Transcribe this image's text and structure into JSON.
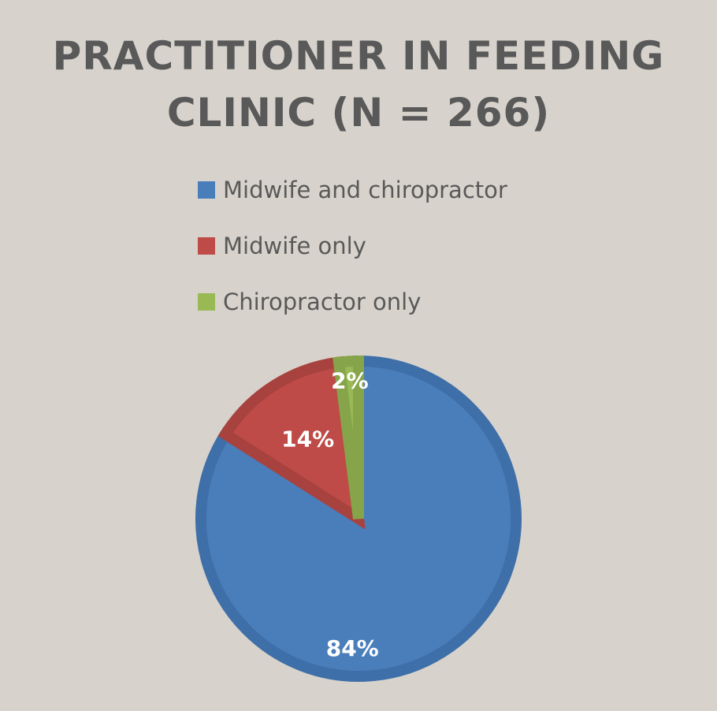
{
  "chart_data": {
    "type": "pie",
    "title": "PRACTITIONER IN FEEDING CLINIC (N = 266)",
    "title_lines": [
      "PRACTITIONER IN FEEDING",
      "CLINIC (N = 266)"
    ],
    "legend_position": "top",
    "slices": [
      {
        "label": "Midwife and chiropractor",
        "value": 84,
        "display": "84%",
        "color": "#4a7ebb",
        "edge_color": "#3f6fa8"
      },
      {
        "label": "Midwife only",
        "value": 14,
        "display": "14%",
        "color": "#be4b48",
        "edge_color": "#a8423f"
      },
      {
        "label": "Chiropractor only",
        "value": 2,
        "display": "2%",
        "color": "#98b954",
        "edge_color": "#86a449"
      }
    ]
  }
}
